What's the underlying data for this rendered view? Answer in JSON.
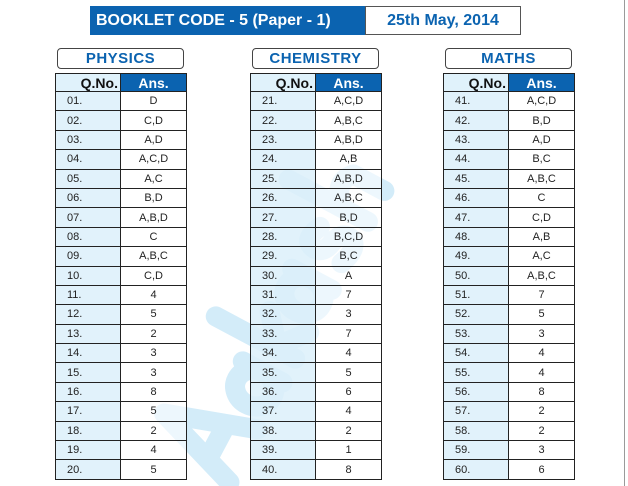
{
  "header": {
    "booklet_code": "BOOKLET CODE - 5 (Paper - 1)",
    "date": "25th May, 2014"
  },
  "watermark": "Aakash",
  "colors": {
    "brand_blue": "#0b63b0",
    "qno_fill": "#e0f2fb",
    "watermark": "#d3ecf9"
  },
  "columns": {
    "qno": "Q.No.",
    "ans": "Ans."
  },
  "sections": [
    {
      "title": "PHYSICS",
      "rows": [
        [
          "01.",
          "D"
        ],
        [
          "02.",
          "C,D"
        ],
        [
          "03.",
          "A,D"
        ],
        [
          "04.",
          "A,C,D"
        ],
        [
          "05.",
          "A,C"
        ],
        [
          "06.",
          "B,D"
        ],
        [
          "07.",
          "A,B,D"
        ],
        [
          "08.",
          "C"
        ],
        [
          "09.",
          "A,B,C"
        ],
        [
          "10.",
          "C,D"
        ],
        [
          "11.",
          "4"
        ],
        [
          "12.",
          "5"
        ],
        [
          "13.",
          "2"
        ],
        [
          "14.",
          "3"
        ],
        [
          "15.",
          "3"
        ],
        [
          "16.",
          "8"
        ],
        [
          "17.",
          "5"
        ],
        [
          "18.",
          "2"
        ],
        [
          "19.",
          "4"
        ],
        [
          "20.",
          "5"
        ]
      ]
    },
    {
      "title": "CHEMISTRY",
      "rows": [
        [
          "21.",
          "A,C,D"
        ],
        [
          "22.",
          "A,B,C"
        ],
        [
          "23.",
          "A,B,D"
        ],
        [
          "24.",
          "A,B"
        ],
        [
          "25.",
          "A,B,D"
        ],
        [
          "26.",
          "A,B,C"
        ],
        [
          "27.",
          "B,D"
        ],
        [
          "28.",
          "B,C,D"
        ],
        [
          "29.",
          "B,C"
        ],
        [
          "30.",
          "A"
        ],
        [
          "31.",
          "7"
        ],
        [
          "32.",
          "3"
        ],
        [
          "33.",
          "7"
        ],
        [
          "34.",
          "4"
        ],
        [
          "35.",
          "5"
        ],
        [
          "36.",
          "6"
        ],
        [
          "37.",
          "4"
        ],
        [
          "38.",
          "2"
        ],
        [
          "39.",
          "1"
        ],
        [
          "40.",
          "8"
        ]
      ]
    },
    {
      "title": "MATHS",
      "rows": [
        [
          "41.",
          "A,C,D"
        ],
        [
          "42.",
          "B,D"
        ],
        [
          "43.",
          "A,D"
        ],
        [
          "44.",
          "B,C"
        ],
        [
          "45.",
          "A,B,C"
        ],
        [
          "46.",
          "C"
        ],
        [
          "47.",
          "C,D"
        ],
        [
          "48.",
          "A,B"
        ],
        [
          "49.",
          "A,C"
        ],
        [
          "50.",
          "A,B,C"
        ],
        [
          "51.",
          "7"
        ],
        [
          "52.",
          "5"
        ],
        [
          "53.",
          "3"
        ],
        [
          "54.",
          "4"
        ],
        [
          "55.",
          "4"
        ],
        [
          "56.",
          "8"
        ],
        [
          "57.",
          "2"
        ],
        [
          "58.",
          "2"
        ],
        [
          "59.",
          "3"
        ],
        [
          "60.",
          "6"
        ]
      ]
    }
  ]
}
